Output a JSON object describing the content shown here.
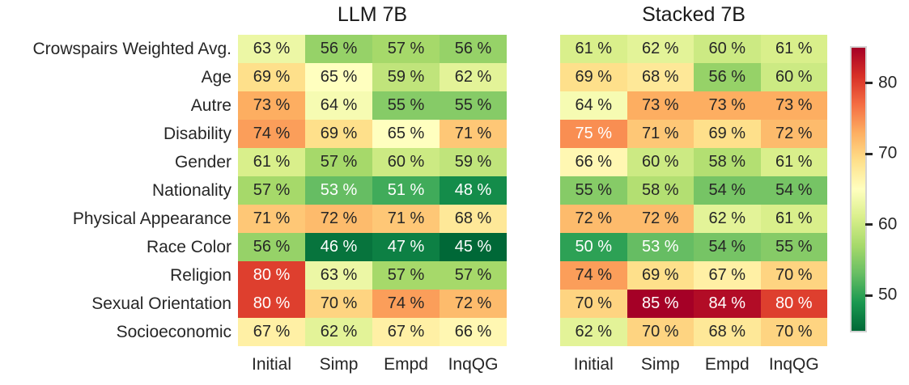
{
  "figure": {
    "background": "#ffffff",
    "text_dark": "#262626",
    "text_light": "#ffffff",
    "colorbar_border": "#d4d4d4"
  },
  "chart_data": {
    "type": "heatmap",
    "rows": [
      "Crowspairs Weighted Avg.",
      "Age",
      "Autre",
      "Disability",
      "Gender",
      "Nationality",
      "Physical Appearance",
      "Race Color",
      "Religion",
      "Sexual Orientation",
      "Socioeconomic"
    ],
    "columns": [
      "Initial",
      "Simp",
      "Empd",
      "InqQG"
    ],
    "panels": [
      {
        "title": "LLM 7B",
        "values": [
          [
            63,
            56,
            57,
            56
          ],
          [
            69,
            65,
            59,
            62
          ],
          [
            73,
            64,
            55,
            55
          ],
          [
            74,
            69,
            65,
            71
          ],
          [
            61,
            57,
            60,
            59
          ],
          [
            57,
            53,
            51,
            48
          ],
          [
            71,
            72,
            71,
            68
          ],
          [
            56,
            46,
            47,
            45
          ],
          [
            80,
            63,
            57,
            57
          ],
          [
            80,
            70,
            74,
            72
          ],
          [
            67,
            62,
            67,
            66
          ]
        ]
      },
      {
        "title": "Stacked 7B",
        "values": [
          [
            61,
            62,
            60,
            61
          ],
          [
            69,
            68,
            56,
            60
          ],
          [
            64,
            73,
            73,
            73
          ],
          [
            75,
            71,
            69,
            72
          ],
          [
            66,
            60,
            58,
            61
          ],
          [
            55,
            58,
            54,
            54
          ],
          [
            72,
            72,
            62,
            61
          ],
          [
            50,
            53,
            54,
            55
          ],
          [
            74,
            69,
            67,
            70
          ],
          [
            70,
            85,
            84,
            80
          ],
          [
            62,
            70,
            68,
            70
          ]
        ]
      }
    ],
    "annotation_suffix": " %",
    "vmin": 45,
    "vmax": 85,
    "colormap_name": "RdYlGn_r",
    "colormap_anchors_high_to_low": [
      "#a50026",
      "#d73027",
      "#f46d43",
      "#fdae61",
      "#fee08b",
      "#ffffbf",
      "#d9ef8b",
      "#a6d96a",
      "#66bd63",
      "#1a9850",
      "#006837"
    ],
    "colorbar": {
      "ticks": [
        80,
        70,
        60,
        50
      ]
    }
  }
}
